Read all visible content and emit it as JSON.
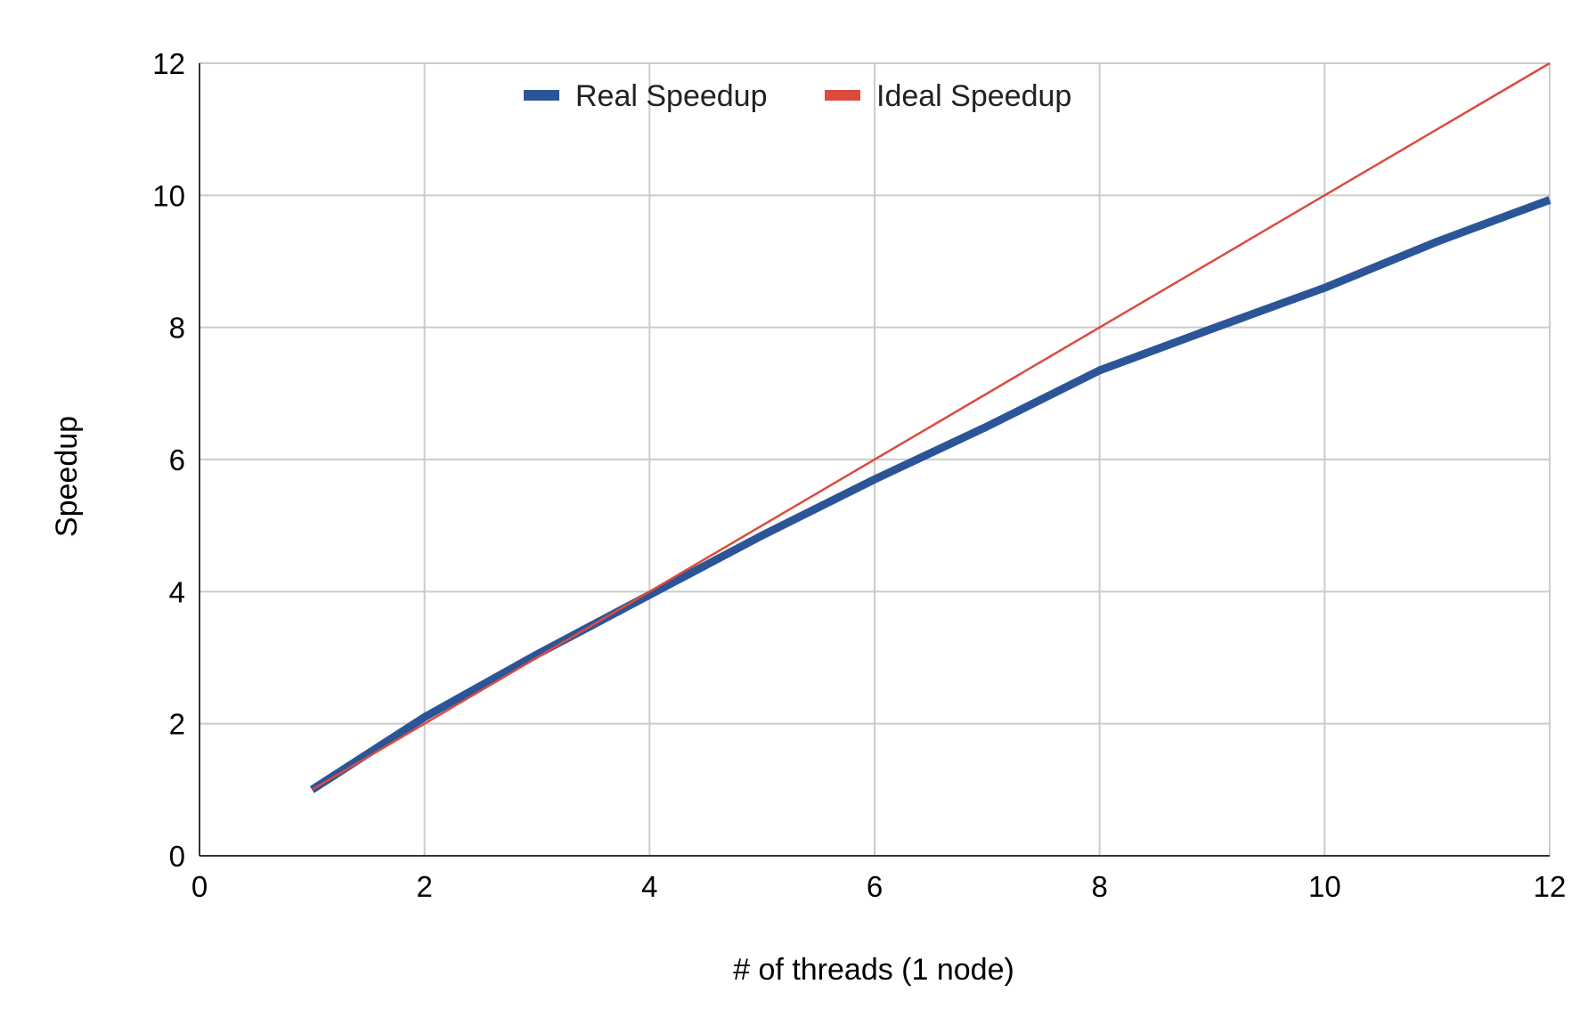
{
  "chart_data": {
    "type": "line",
    "title": "",
    "xlabel": "# of threads (1 node)",
    "ylabel": "Speedup",
    "xlim": [
      0,
      12
    ],
    "ylim": [
      0,
      12
    ],
    "x_ticks": [
      "0",
      "2",
      "4",
      "6",
      "8",
      "10",
      "12"
    ],
    "y_ticks": [
      "0",
      "2",
      "4",
      "6",
      "8",
      "10",
      "12"
    ],
    "grid": true,
    "legend_position": "top-center",
    "series": [
      {
        "name": "Real Speedup",
        "color": "#2c5597",
        "x": [
          1,
          2,
          3,
          4,
          5,
          6,
          7,
          8,
          9,
          10,
          11,
          12
        ],
        "y": [
          1.0,
          2.1,
          3.05,
          3.95,
          4.85,
          5.7,
          6.5,
          7.35,
          7.98,
          8.6,
          9.3,
          9.93
        ]
      },
      {
        "name": "Ideal Speedup",
        "color": "#db4c3f",
        "x": [
          1,
          12
        ],
        "y": [
          1,
          12
        ]
      }
    ]
  }
}
